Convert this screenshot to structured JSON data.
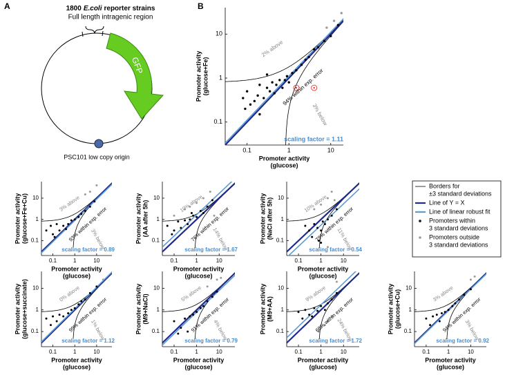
{
  "panel_a": {
    "label": "A",
    "title_count": "1800",
    "title_species": "E.coli",
    "title_rest": "reporter strains",
    "subtitle": "Full length intragenic region",
    "gene": "GFP",
    "origin": "PSC101 low copy origin"
  },
  "legend": {
    "items": [
      {
        "lines": [
          "Borders for",
          "±3 standard deviations"
        ],
        "color": "#000000",
        "kind": "thin-line"
      },
      {
        "lines": [
          "Line of Y = X"
        ],
        "color": "#1f2a8c",
        "kind": "line"
      },
      {
        "lines": [
          "Line of linear robust fit"
        ],
        "color": "#5a9bd4",
        "kind": "line"
      },
      {
        "lines": [
          "Promoters within",
          "3 standard deviations"
        ],
        "color": "#000000",
        "kind": "dot"
      },
      {
        "lines": [
          "Promoters outside",
          "3 standard deviations"
        ],
        "color": "#999999",
        "kind": "dot"
      }
    ]
  },
  "chart_data": [
    {
      "type": "scatter",
      "panel": "B",
      "ylabel": [
        "Promoter activity",
        "(glucose+Fe)"
      ],
      "xlabel": [
        "Promoter activity",
        "(glucose)"
      ],
      "xscale": "log",
      "yscale": "log",
      "xlim": [
        0.03,
        20
      ],
      "ylim": [
        0.03,
        40
      ],
      "xticks": [
        0.1,
        1,
        10
      ],
      "yticks": [
        0.1,
        1,
        10
      ],
      "annotations": {
        "above": "2% above",
        "below": "3% below",
        "within": "94% within exp. error"
      },
      "scaling_factor": 1.11,
      "scaling_label": "scaling factor = 1.11",
      "series": [
        {
          "color": "#000000",
          "x": [
            0.08,
            0.1,
            0.12,
            0.15,
            0.18,
            0.2,
            0.25,
            0.3,
            0.35,
            0.4,
            0.45,
            0.5,
            0.6,
            0.7,
            0.8,
            0.9,
            1.0,
            1.2,
            1.5,
            2,
            2.5,
            3,
            4,
            5,
            7,
            10,
            15,
            0.09,
            0.2,
            0.3
          ],
          "values": [
            0.35,
            0.5,
            0.25,
            0.3,
            0.4,
            0.7,
            0.35,
            0.6,
            0.5,
            0.8,
            0.45,
            0.7,
            0.9,
            0.6,
            0.9,
            1.1,
            0.8,
            1.3,
            1.5,
            2,
            2.6,
            3,
            4.5,
            5,
            7,
            9,
            16,
            0.2,
            0.15,
            1.2
          ]
        },
        {
          "color": "#999999",
          "x": [
            8,
            12,
            18
          ],
          "values": [
            14,
            20,
            30
          ]
        },
        {
          "color": "#e03030",
          "marker": "circled",
          "x": [
            1.5,
            4
          ],
          "values": [
            0.6,
            0.6
          ]
        }
      ]
    },
    {
      "type": "scatter",
      "ylabel": [
        "Promoter activity",
        "(glucose+Fe+Cu)"
      ],
      "xlabel": [
        "Promoter activity",
        "(glucose)"
      ],
      "xscale": "log",
      "yscale": "log",
      "xlim": [
        0.03,
        50
      ],
      "ylim": [
        0.02,
        60
      ],
      "xticks": [
        0.1,
        1,
        10
      ],
      "yticks": [
        0.1,
        1,
        10
      ],
      "annotations": {
        "above": "3% above",
        "below": "3% below",
        "within": "93% within exp. error"
      },
      "scaling_factor": 0.89,
      "scaling_label": "scaling factor = 0.89",
      "series": [
        {
          "color": "#000000",
          "x": [
            0.05,
            0.08,
            0.1,
            0.15,
            0.2,
            0.3,
            0.5,
            0.7,
            1,
            1.5,
            2,
            3,
            5,
            8,
            0.12,
            0.4
          ],
          "values": [
            0.3,
            0.5,
            0.2,
            0.6,
            0.3,
            0.5,
            0.6,
            0.9,
            1,
            1.3,
            1.8,
            2.5,
            4,
            7,
            0.15,
            0.35
          ]
        },
        {
          "color": "#999999",
          "x": [
            3,
            5,
            10
          ],
          "values": [
            15,
            20,
            40
          ]
        }
      ]
    },
    {
      "type": "scatter",
      "ylabel": [
        "Promoter activity",
        "(AA after 5h)"
      ],
      "xlabel": [
        "Promoter activity",
        "(glucose)"
      ],
      "xscale": "log",
      "yscale": "log",
      "xlim": [
        0.03,
        50
      ],
      "ylim": [
        0.02,
        60
      ],
      "xticks": [
        0.1,
        1,
        10
      ],
      "yticks": [
        0.1,
        1,
        10
      ],
      "annotations": {
        "above": "10% above",
        "below": "14% below",
        "within": "76% within exp. error"
      },
      "scaling_factor": 1.67,
      "scaling_label": "scaling factor = 1.67",
      "series": [
        {
          "color": "#000000",
          "x": [
            0.05,
            0.1,
            0.15,
            0.2,
            0.3,
            0.5,
            0.7,
            1,
            1.5,
            2,
            3,
            5,
            0.08,
            0.4,
            0.6
          ],
          "values": [
            0.5,
            0.3,
            0.8,
            0.4,
            0.9,
            1,
            1.5,
            1.3,
            2.5,
            2,
            4,
            8,
            0.2,
            0.6,
            2
          ]
        },
        {
          "color": "#999999",
          "x": [
            0.3,
            0.5,
            1,
            2,
            4,
            0.1,
            6
          ],
          "values": [
            3,
            4,
            6,
            10,
            20,
            1.5,
            1.5
          ]
        }
      ]
    },
    {
      "type": "scatter",
      "ylabel": [
        "Promoter activity",
        "(NaCl after 5h)"
      ],
      "xlabel": [
        "Promoter activity",
        "(glucose)"
      ],
      "xscale": "log",
      "yscale": "log",
      "xlim": [
        0.03,
        50
      ],
      "ylim": [
        0.02,
        60
      ],
      "xticks": [
        0.1,
        1,
        10
      ],
      "yticks": [
        0.1,
        1,
        10
      ],
      "annotations": {
        "above": "10% above",
        "below": "11% below",
        "within": "79% within exp. error"
      },
      "scaling_factor": 0.54,
      "scaling_label": "scaling factor = 0.54",
      "series": [
        {
          "color": "#000000",
          "x": [
            0.2,
            0.3,
            0.5,
            0.7,
            1,
            1.2,
            1.5,
            2,
            3,
            5,
            0.4,
            0.8,
            1
          ],
          "values": [
            0.5,
            0.3,
            0.6,
            0.4,
            0.3,
            0.8,
            0.6,
            1,
            1.5,
            3,
            0.15,
            0.1,
            0.08
          ]
        },
        {
          "color": "#999999",
          "x": [
            0.5,
            1,
            2,
            3,
            4,
            2
          ],
          "values": [
            3,
            5,
            10,
            20,
            8,
            0.05
          ]
        }
      ]
    },
    {
      "type": "scatter",
      "ylabel": [
        "Promoter activity",
        "(glucose+succinate)"
      ],
      "xlabel": [
        "Promoter activity",
        "(glucose)"
      ],
      "xscale": "log",
      "yscale": "log",
      "xlim": [
        0.03,
        50
      ],
      "ylim": [
        0.02,
        60
      ],
      "xticks": [
        0.1,
        1,
        10
      ],
      "yticks": [
        0.1,
        1,
        10
      ],
      "annotations": {
        "above": "0% above",
        "below": "1% below",
        "within": "99% within exp. error"
      },
      "scaling_factor": 1.12,
      "scaling_label": "scaling factor = 1.12",
      "series": [
        {
          "color": "#000000",
          "x": [
            0.05,
            0.1,
            0.15,
            0.2,
            0.3,
            0.5,
            0.7,
            1,
            1.5,
            2,
            3,
            5,
            10,
            0.08
          ],
          "values": [
            0.4,
            0.5,
            0.3,
            0.6,
            0.5,
            0.7,
            1,
            1.2,
            1.8,
            2.5,
            3,
            6,
            12,
            0.2
          ]
        },
        {
          "color": "#999999",
          "x": [
            20
          ],
          "values": [
            25
          ]
        }
      ]
    },
    {
      "type": "scatter",
      "ylabel": [
        "Promoter activity",
        "(M9+NaCl)"
      ],
      "xlabel": [
        "Promoter activity",
        "(glucose)"
      ],
      "xscale": "log",
      "yscale": "log",
      "xlim": [
        0.03,
        50
      ],
      "ylim": [
        0.02,
        60
      ],
      "xticks": [
        0.1,
        1,
        10
      ],
      "yticks": [
        0.1,
        1,
        10
      ],
      "annotations": {
        "above": "5% above",
        "below": "4% below",
        "within": "91% within exp. error"
      },
      "scaling_factor": 0.79,
      "scaling_label": "scaling factor = 0.79",
      "series": [
        {
          "color": "#000000",
          "x": [
            0.1,
            0.2,
            0.3,
            0.5,
            0.7,
            1,
            1.5,
            2,
            3,
            5,
            8,
            0.15,
            0.4
          ],
          "values": [
            0.3,
            0.15,
            0.4,
            0.5,
            0.6,
            0.8,
            1.2,
            1.5,
            2.5,
            4,
            7,
            0.08,
            0.1
          ]
        },
        {
          "color": "#999999",
          "x": [
            8,
            12,
            3
          ],
          "values": [
            25,
            30,
            12
          ]
        }
      ]
    },
    {
      "type": "scatter",
      "ylabel": [
        "Promoter activity",
        "(M9+AA)"
      ],
      "xlabel": [
        "Promoter activity",
        "(glucose)"
      ],
      "xscale": "log",
      "yscale": "log",
      "xlim": [
        0.03,
        50
      ],
      "ylim": [
        0.02,
        60
      ],
      "xticks": [
        0.1,
        1,
        10
      ],
      "yticks": [
        0.1,
        1,
        10
      ],
      "annotations": {
        "above": "9% above",
        "below": "24% below",
        "within": "68% within exp. error"
      },
      "scaling_factor": 1.72,
      "scaling_label": "scaling factor = 1.72",
      "series": [
        {
          "color": "#000000",
          "x": [
            0.1,
            0.2,
            0.3,
            0.5,
            0.7,
            1,
            1.5,
            2,
            3,
            5,
            0.15,
            0.4
          ],
          "values": [
            0.8,
            1,
            0.6,
            1.2,
            0.9,
            1.5,
            1,
            2,
            3,
            6,
            0.4,
            0.5
          ]
        },
        {
          "color": "#999999",
          "x": [
            0.8,
            1,
            1.5,
            2,
            3,
            5
          ],
          "values": [
            0.1,
            0.15,
            0.2,
            0.3,
            0.5,
            20
          ]
        }
      ]
    },
    {
      "type": "scatter",
      "ylabel": [
        "Promoter activity",
        "(glucose+Cu)"
      ],
      "xlabel": [
        "Promoter activity",
        "(glucose)"
      ],
      "xscale": "log",
      "yscale": "log",
      "xlim": [
        0.03,
        50
      ],
      "ylim": [
        0.02,
        60
      ],
      "xticks": [
        0.1,
        1,
        10
      ],
      "yticks": [
        0.1,
        1,
        10
      ],
      "annotations": {
        "above": "3% above",
        "below": "3% below",
        "within": "94% within exp. error"
      },
      "scaling_factor": 0.92,
      "scaling_label": "scaling factor = 0.92",
      "series": [
        {
          "color": "#000000",
          "x": [
            0.1,
            0.2,
            0.3,
            0.5,
            0.7,
            1,
            1.5,
            2,
            3,
            5,
            10,
            0.15,
            0.4
          ],
          "values": [
            0.4,
            0.5,
            0.6,
            0.7,
            0.8,
            1,
            1.5,
            2,
            3,
            5,
            9,
            0.2,
            0.3
          ]
        },
        {
          "color": "#999999",
          "x": [
            10,
            15
          ],
          "values": [
            25,
            35
          ]
        }
      ]
    }
  ]
}
